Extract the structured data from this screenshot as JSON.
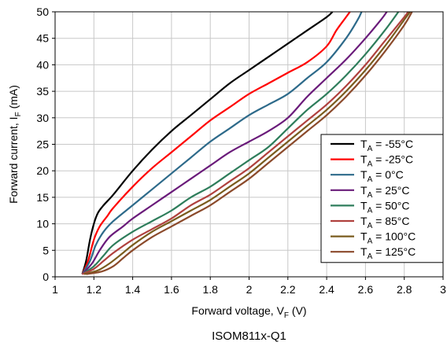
{
  "chart_data": {
    "type": "line",
    "caption": "ISOM811x-Q1",
    "xlabel": {
      "main": "Forward voltage, V",
      "sub": "F",
      "suffix": " (V)"
    },
    "ylabel": {
      "main": "Forward current, I",
      "sub": "F",
      "suffix": " (mA)"
    },
    "xlim": [
      1,
      3
    ],
    "ylim": [
      0,
      50
    ],
    "xticks": [
      1,
      1.2,
      1.4,
      1.6,
      1.8,
      2,
      2.2,
      2.4,
      2.6,
      2.8,
      3
    ],
    "xtick_labels": [
      "1",
      "1.2",
      "1.4",
      "1.6",
      "1.8",
      "2",
      "2.2",
      "2.4",
      "2.6",
      "2.8",
      "3"
    ],
    "yticks": [
      0,
      5,
      10,
      15,
      20,
      25,
      30,
      35,
      40,
      45,
      50
    ],
    "ytick_labels": [
      "0",
      "5",
      "10",
      "15",
      "20",
      "25",
      "30",
      "35",
      "40",
      "45",
      "50"
    ],
    "grid": true,
    "legend_position": "bottom-right",
    "series": [
      {
        "label_main": "T",
        "label_sub": "A",
        "label_rest": " = -55°C",
        "color": "#000000",
        "points": [
          [
            1.14,
            0.5
          ],
          [
            1.16,
            3
          ],
          [
            1.18,
            7
          ],
          [
            1.2,
            10
          ],
          [
            1.22,
            12
          ],
          [
            1.25,
            13.5
          ],
          [
            1.3,
            15.5
          ],
          [
            1.4,
            20
          ],
          [
            1.5,
            24
          ],
          [
            1.6,
            27.5
          ],
          [
            1.7,
            30.5
          ],
          [
            1.8,
            33.5
          ],
          [
            1.9,
            36.5
          ],
          [
            2.0,
            39
          ],
          [
            2.1,
            41.5
          ],
          [
            2.2,
            44
          ],
          [
            2.3,
            46.5
          ],
          [
            2.4,
            49
          ],
          [
            2.43,
            50
          ]
        ]
      },
      {
        "label_main": "T",
        "label_sub": "A",
        "label_rest": " = -25°C",
        "color": "#ff0000",
        "points": [
          [
            1.14,
            0.5
          ],
          [
            1.17,
            3
          ],
          [
            1.2,
            7
          ],
          [
            1.23,
            9.5
          ],
          [
            1.27,
            11.5
          ],
          [
            1.3,
            13
          ],
          [
            1.4,
            17
          ],
          [
            1.5,
            20.5
          ],
          [
            1.6,
            23.5
          ],
          [
            1.7,
            26.5
          ],
          [
            1.8,
            29.5
          ],
          [
            1.9,
            32
          ],
          [
            2.0,
            34.5
          ],
          [
            2.1,
            36.5
          ],
          [
            2.2,
            38.5
          ],
          [
            2.3,
            40.5
          ],
          [
            2.4,
            43.5
          ],
          [
            2.45,
            46.5
          ],
          [
            2.5,
            49
          ],
          [
            2.52,
            50
          ]
        ]
      },
      {
        "label_main": "T",
        "label_sub": "A",
        "label_rest": " = 0°C",
        "color": "#2d6a8a",
        "points": [
          [
            1.14,
            0.5
          ],
          [
            1.18,
            3
          ],
          [
            1.21,
            6
          ],
          [
            1.25,
            8.5
          ],
          [
            1.3,
            10.5
          ],
          [
            1.4,
            13.5
          ],
          [
            1.5,
            16.5
          ],
          [
            1.6,
            19.5
          ],
          [
            1.7,
            22.5
          ],
          [
            1.8,
            25.5
          ],
          [
            1.9,
            28
          ],
          [
            2.0,
            30.5
          ],
          [
            2.1,
            32.5
          ],
          [
            2.2,
            34.5
          ],
          [
            2.3,
            37.5
          ],
          [
            2.4,
            40.5
          ],
          [
            2.5,
            45
          ],
          [
            2.56,
            48.5
          ],
          [
            2.58,
            50
          ]
        ]
      },
      {
        "label_main": "T",
        "label_sub": "A",
        "label_rest": " = 25°C",
        "color": "#6a1b7a",
        "points": [
          [
            1.14,
            0.5
          ],
          [
            1.19,
            2.5
          ],
          [
            1.23,
            5
          ],
          [
            1.28,
            7.5
          ],
          [
            1.35,
            9.5
          ],
          [
            1.4,
            11
          ],
          [
            1.5,
            13.5
          ],
          [
            1.6,
            16
          ],
          [
            1.7,
            18.5
          ],
          [
            1.8,
            21
          ],
          [
            1.9,
            23.5
          ],
          [
            2.0,
            25.5
          ],
          [
            2.1,
            27.5
          ],
          [
            2.2,
            30
          ],
          [
            2.3,
            34
          ],
          [
            2.4,
            37.5
          ],
          [
            2.5,
            41
          ],
          [
            2.6,
            45
          ],
          [
            2.68,
            48.5
          ],
          [
            2.71,
            50
          ]
        ]
      },
      {
        "label_main": "T",
        "label_sub": "A",
        "label_rest": " = 50°C",
        "color": "#2e7d5b",
        "points": [
          [
            1.14,
            0.5
          ],
          [
            1.2,
            2
          ],
          [
            1.25,
            4
          ],
          [
            1.3,
            6
          ],
          [
            1.4,
            8.5
          ],
          [
            1.5,
            10.5
          ],
          [
            1.6,
            12.5
          ],
          [
            1.7,
            15
          ],
          [
            1.8,
            17
          ],
          [
            1.9,
            19.5
          ],
          [
            2.0,
            22
          ],
          [
            2.1,
            24.5
          ],
          [
            2.2,
            28
          ],
          [
            2.3,
            31.5
          ],
          [
            2.4,
            34.5
          ],
          [
            2.5,
            38
          ],
          [
            2.6,
            42
          ],
          [
            2.7,
            46.5
          ],
          [
            2.77,
            50
          ]
        ]
      },
      {
        "label_main": "T",
        "label_sub": "A",
        "label_rest": " = 85°C",
        "color": "#b0413e",
        "points": [
          [
            1.14,
            0.5
          ],
          [
            1.2,
            1.5
          ],
          [
            1.25,
            3
          ],
          [
            1.3,
            4.5
          ],
          [
            1.4,
            7
          ],
          [
            1.5,
            9
          ],
          [
            1.6,
            11
          ],
          [
            1.7,
            13.5
          ],
          [
            1.8,
            15.5
          ],
          [
            1.9,
            18
          ],
          [
            2.0,
            20.5
          ],
          [
            2.1,
            23.5
          ],
          [
            2.2,
            26.5
          ],
          [
            2.3,
            29.5
          ],
          [
            2.4,
            32.5
          ],
          [
            2.5,
            36
          ],
          [
            2.6,
            40
          ],
          [
            2.7,
            44.5
          ],
          [
            2.8,
            49
          ],
          [
            2.82,
            50
          ]
        ]
      },
      {
        "label_main": "T",
        "label_sub": "A",
        "label_rest": " = 100°C",
        "color": "#7a5c1e",
        "points": [
          [
            1.15,
            0.5
          ],
          [
            1.22,
            1.2
          ],
          [
            1.28,
            2.5
          ],
          [
            1.35,
            4.5
          ],
          [
            1.4,
            6
          ],
          [
            1.5,
            8.5
          ],
          [
            1.6,
            10.5
          ],
          [
            1.7,
            12.5
          ],
          [
            1.8,
            14.5
          ],
          [
            1.9,
            17
          ],
          [
            2.0,
            19.5
          ],
          [
            2.1,
            22.5
          ],
          [
            2.2,
            25.5
          ],
          [
            2.3,
            28.5
          ],
          [
            2.4,
            31.5
          ],
          [
            2.5,
            35
          ],
          [
            2.6,
            39
          ],
          [
            2.7,
            43.5
          ],
          [
            2.8,
            48.5
          ],
          [
            2.83,
            50
          ]
        ]
      },
      {
        "label_main": "T",
        "label_sub": "A",
        "label_rest": " = 125°C",
        "color": "#8b4a2b",
        "points": [
          [
            1.16,
            0.5
          ],
          [
            1.24,
            1
          ],
          [
            1.3,
            2
          ],
          [
            1.35,
            3.5
          ],
          [
            1.4,
            5
          ],
          [
            1.5,
            7.5
          ],
          [
            1.6,
            9.5
          ],
          [
            1.7,
            11.5
          ],
          [
            1.8,
            13.5
          ],
          [
            1.9,
            16
          ],
          [
            2.0,
            18.5
          ],
          [
            2.1,
            21.5
          ],
          [
            2.2,
            24.5
          ],
          [
            2.3,
            27.5
          ],
          [
            2.4,
            30.5
          ],
          [
            2.5,
            34
          ],
          [
            2.6,
            38
          ],
          [
            2.7,
            42.5
          ],
          [
            2.8,
            47.5
          ],
          [
            2.84,
            50
          ]
        ]
      }
    ]
  }
}
